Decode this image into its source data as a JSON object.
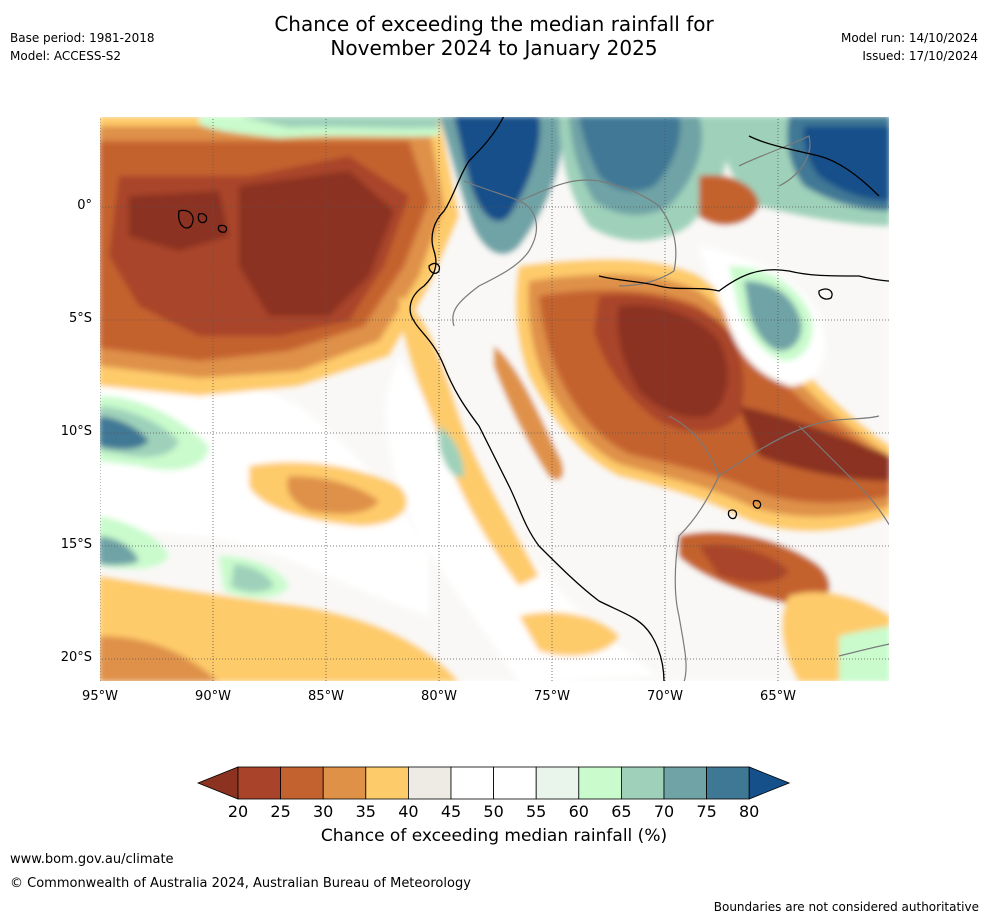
{
  "title_line1": "Chance of exceeding the median rainfall for",
  "title_line2": "November 2024 to January 2025",
  "base_period": "Base period: 1981-2018",
  "model": "Model: ACCESS-S2",
  "model_run": "Model run: 14/10/2024",
  "issued": "Issued: 17/10/2024",
  "lat_labels": [
    "0°",
    "5°S",
    "10°S",
    "15°S",
    "20°S"
  ],
  "lon_labels": [
    "95°W",
    "90°W",
    "85°W",
    "80°W",
    "75°W",
    "70°W",
    "65°W"
  ],
  "colorbar": {
    "ticks": [
      "20",
      "25",
      "30",
      "35",
      "40",
      "45",
      "50",
      "55",
      "60",
      "65",
      "70",
      "75",
      "80"
    ],
    "colors": [
      "#8b3320",
      "#a9442a",
      "#c4622f",
      "#df9148",
      "#fecb6b",
      "#eeebe5",
      "#ffffff",
      "#ffffff",
      "#e9f5ea",
      "#c9fbcc",
      "#9fd1ba",
      "#6fa3a6",
      "#3f7895",
      "#16508a"
    ],
    "label": "Chance of exceeding median rainfall (%)"
  },
  "footer": {
    "url": "www.bom.gov.au/climate",
    "copyright": "© Commonwealth of Australia 2024, Australian Bureau of Meteorology",
    "disclaimer": "Boundaries are not considered authoritative"
  }
}
